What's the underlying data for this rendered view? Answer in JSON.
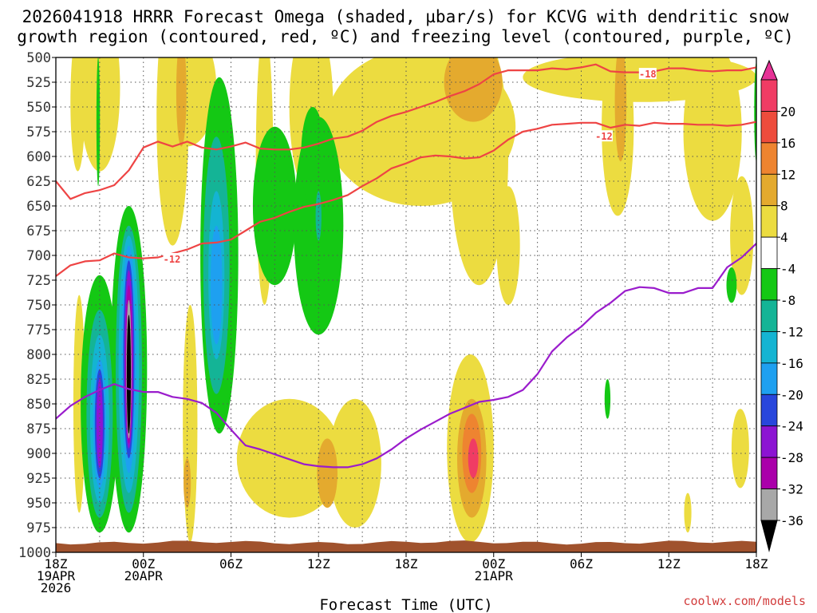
{
  "chart_data": {
    "type": "heatmap",
    "title_line1": "2026041918 HRRR Forecast Omega (shaded, µbar/s) for KCVG with dendritic snow",
    "title_line2": "growth region (contoured, red, ºC) and freezing level (contoured, purple, ºC)",
    "xlabel": "Forecast Time (UTC)",
    "ylabel": "",
    "xlim": [
      0,
      48
    ],
    "ylim": [
      1000,
      500
    ],
    "y_ticks": [
      "500",
      "525",
      "550",
      "575",
      "600",
      "625",
      "650",
      "675",
      "700",
      "725",
      "750",
      "775",
      "800",
      "825",
      "850",
      "875",
      "900",
      "925",
      "950",
      "975",
      "1000"
    ],
    "x_ticks": [
      {
        "hour": 0,
        "line1": "18Z",
        "line2": "19APR",
        "line3": "2026"
      },
      {
        "hour": 6,
        "line1": "00Z",
        "line2": "20APR",
        "line3": ""
      },
      {
        "hour": 12,
        "line1": "06Z",
        "line2": "",
        "line3": ""
      },
      {
        "hour": 18,
        "line1": "12Z",
        "line2": "",
        "line3": ""
      },
      {
        "hour": 24,
        "line1": "18Z",
        "line2": "",
        "line3": ""
      },
      {
        "hour": 30,
        "line1": "00Z",
        "line2": "21APR",
        "line3": ""
      },
      {
        "hour": 36,
        "line1": "06Z",
        "line2": "",
        "line3": ""
      },
      {
        "hour": 42,
        "line1": "12Z",
        "line2": "",
        "line3": ""
      },
      {
        "hour": 48,
        "line1": "18Z",
        "line2": "",
        "line3": ""
      }
    ],
    "colorbar": {
      "labels": [
        "20",
        "16",
        "12",
        "8",
        "4",
        "-4",
        "-8",
        "-12",
        "-16",
        "-20",
        "-24",
        "-28",
        "-32",
        "-36"
      ],
      "colors": [
        "#f03c64",
        "#ee4c3c",
        "#ee8430",
        "#e4aa2e",
        "#ecdc40",
        "#ffffff",
        "#14c814",
        "#14b496",
        "#14b4d2",
        "#1ea0f0",
        "#2846dc",
        "#8c14d2",
        "#aa00aa",
        "#a8a8a8"
      ],
      "top_arrow_color": "#e63296",
      "bottom_arrow_color": "#000000"
    },
    "shading": [
      {
        "level": "4 to 8",
        "color": "#ecdc40",
        "blobs": [
          {
            "h": 1.5,
            "p": 545,
            "rh": 0.5,
            "rp": 70
          },
          {
            "h": 1.6,
            "p": 850,
            "rh": 0.4,
            "rp": 110
          },
          {
            "h": 3.0,
            "p": 530,
            "rh": 1.4,
            "rp": 85
          },
          {
            "h": 8.0,
            "p": 560,
            "rh": 1.1,
            "rp": 130
          },
          {
            "h": 9.0,
            "p": 530,
            "rh": 2.0,
            "rp": 60
          },
          {
            "h": 9.2,
            "p": 870,
            "rh": 0.5,
            "rp": 120
          },
          {
            "h": 14.3,
            "p": 610,
            "rh": 0.6,
            "rp": 140
          },
          {
            "h": 16.0,
            "p": 905,
            "rh": 3.6,
            "rp": 60
          },
          {
            "h": 20.5,
            "p": 910,
            "rh": 1.8,
            "rp": 65
          },
          {
            "h": 17.5,
            "p": 550,
            "rh": 1.5,
            "rp": 90
          },
          {
            "h": 25.0,
            "p": 570,
            "rh": 6.5,
            "rp": 80
          },
          {
            "h": 29.0,
            "p": 600,
            "rh": 2.0,
            "rp": 130
          },
          {
            "h": 31.0,
            "p": 690,
            "rh": 0.8,
            "rp": 60
          },
          {
            "h": 28.4,
            "p": 895,
            "rh": 1.6,
            "rp": 95
          },
          {
            "h": 38.5,
            "p": 570,
            "rh": 1.1,
            "rp": 90
          },
          {
            "h": 40.0,
            "p": 520,
            "rh": 8.0,
            "rp": 25
          },
          {
            "h": 45.0,
            "p": 575,
            "rh": 2.0,
            "rp": 90
          },
          {
            "h": 47.0,
            "p": 680,
            "rh": 0.8,
            "rp": 60
          },
          {
            "h": 46.9,
            "p": 895,
            "rh": 0.6,
            "rp": 40
          },
          {
            "h": 43.3,
            "p": 960,
            "rh": 0.25,
            "rp": 20
          }
        ]
      },
      {
        "level": "8 to 12",
        "color": "#e4aa2e",
        "blobs": [
          {
            "h": 8.6,
            "p": 535,
            "rh": 0.35,
            "rp": 55
          },
          {
            "h": 28.6,
            "p": 525,
            "rh": 2.0,
            "rp": 40
          },
          {
            "h": 38.7,
            "p": 545,
            "rh": 0.4,
            "rp": 60
          },
          {
            "h": 18.6,
            "p": 920,
            "rh": 0.7,
            "rp": 35
          },
          {
            "h": 28.5,
            "p": 905,
            "rh": 1.0,
            "rp": 60
          },
          {
            "h": 9.0,
            "p": 930,
            "rh": 0.25,
            "rp": 25
          }
        ]
      },
      {
        "level": "12 to 16",
        "color": "#ee8430",
        "blobs": [
          {
            "h": 28.5,
            "p": 900,
            "rh": 0.65,
            "rp": 40
          }
        ]
      },
      {
        "level": "16 to 20",
        "color": "#f03c64",
        "blobs": [
          {
            "h": 28.6,
            "p": 905,
            "rh": 0.35,
            "rp": 20
          },
          {
            "h": 4.1,
            "p": 830,
            "rh": 0.15,
            "rp": 40
          }
        ]
      },
      {
        "level": "-4 to -8",
        "color": "#14c814",
        "blobs": [
          {
            "h": 3.0,
            "p": 850,
            "rh": 1.3,
            "rp": 130
          },
          {
            "h": 5.0,
            "p": 815,
            "rh": 1.25,
            "rp": 165
          },
          {
            "h": 2.9,
            "p": 565,
            "rh": 0.12,
            "rp": 65
          },
          {
            "h": 11.2,
            "p": 700,
            "rh": 1.3,
            "rp": 180
          },
          {
            "h": 15.0,
            "p": 650,
            "rh": 1.5,
            "rp": 80
          },
          {
            "h": 18.0,
            "p": 670,
            "rh": 1.7,
            "rp": 110
          },
          {
            "h": 17.6,
            "p": 600,
            "rh": 0.8,
            "rp": 50
          },
          {
            "h": 46.3,
            "p": 730,
            "rh": 0.35,
            "rp": 18
          },
          {
            "h": 37.8,
            "p": 845,
            "rh": 0.2,
            "rp": 20
          },
          {
            "h": 48.0,
            "p": 555,
            "rh": 0.15,
            "rp": 50
          }
        ]
      },
      {
        "level": "-8 to -12",
        "color": "#14b496",
        "blobs": [
          {
            "h": 3.0,
            "p": 860,
            "rh": 0.9,
            "rp": 105
          },
          {
            "h": 5.0,
            "p": 815,
            "rh": 0.9,
            "rp": 145
          },
          {
            "h": 11.0,
            "p": 710,
            "rh": 0.9,
            "rp": 130
          },
          {
            "h": 18.0,
            "p": 660,
            "rh": 0.2,
            "rp": 25
          }
        ]
      },
      {
        "level": "-12 to -16",
        "color": "#14b4d2",
        "blobs": [
          {
            "h": 3.0,
            "p": 865,
            "rh": 0.65,
            "rp": 85
          },
          {
            "h": 5.0,
            "p": 810,
            "rh": 0.7,
            "rp": 130
          },
          {
            "h": 11.0,
            "p": 720,
            "rh": 0.55,
            "rp": 85
          }
        ]
      },
      {
        "level": "-16 to -20",
        "color": "#1ea0f0",
        "blobs": [
          {
            "h": 3.0,
            "p": 870,
            "rh": 0.45,
            "rp": 65
          },
          {
            "h": 5.0,
            "p": 805,
            "rh": 0.5,
            "rp": 115
          },
          {
            "h": 11.0,
            "p": 730,
            "rh": 0.4,
            "rp": 60
          }
        ]
      },
      {
        "level": "-20 to -24",
        "color": "#2846dc",
        "blobs": [
          {
            "h": 3.0,
            "p": 870,
            "rh": 0.33,
            "rp": 55
          },
          {
            "h": 5.0,
            "p": 805,
            "rh": 0.38,
            "rp": 100
          }
        ]
      },
      {
        "level": "-24 to -28",
        "color": "#8c14d2",
        "blobs": [
          {
            "h": 3.0,
            "p": 870,
            "rh": 0.22,
            "rp": 45
          },
          {
            "h": 5.0,
            "p": 805,
            "rh": 0.3,
            "rp": 90
          }
        ]
      },
      {
        "level": "-28 to -32",
        "color": "#aa00aa",
        "blobs": [
          {
            "h": 5.0,
            "p": 810,
            "rh": 0.24,
            "rp": 80
          }
        ]
      },
      {
        "level": "-32 to -36",
        "color": "#a8a8a8",
        "blobs": [
          {
            "h": 5.0,
            "p": 815,
            "rh": 0.18,
            "rp": 70
          }
        ]
      },
      {
        "level": "< -36",
        "color": "#000000",
        "blobs": [
          {
            "h": 5.0,
            "p": 820,
            "rh": 0.14,
            "rp": 60
          }
        ]
      }
    ],
    "contours": [
      {
        "name": "minus18",
        "label": "-18",
        "label_hour": 40.5,
        "label_p": 517,
        "color": "#ee4444",
        "points": [
          [
            0,
            625
          ],
          [
            1,
            643
          ],
          [
            2,
            637
          ],
          [
            3,
            634
          ],
          [
            4,
            629
          ],
          [
            5,
            614
          ],
          [
            6,
            591
          ],
          [
            7,
            585
          ],
          [
            8,
            590
          ],
          [
            9,
            585
          ],
          [
            10,
            591
          ],
          [
            11,
            593
          ],
          [
            12,
            590
          ],
          [
            13,
            586
          ],
          [
            14,
            592
          ],
          [
            15,
            593
          ],
          [
            16,
            593
          ],
          [
            17,
            591
          ],
          [
            18,
            587
          ],
          [
            19,
            582
          ],
          [
            20,
            580
          ],
          [
            21,
            574
          ],
          [
            22,
            565
          ],
          [
            23,
            559
          ],
          [
            24,
            555
          ],
          [
            25,
            550
          ],
          [
            26,
            545
          ],
          [
            27,
            539
          ],
          [
            28,
            534
          ],
          [
            29,
            527
          ],
          [
            30,
            517
          ],
          [
            31,
            513
          ],
          [
            32,
            513
          ],
          [
            33,
            513
          ],
          [
            34,
            511
          ],
          [
            35,
            512
          ],
          [
            36,
            510
          ],
          [
            37,
            507
          ],
          [
            38,
            514
          ],
          [
            39,
            515
          ],
          [
            40,
            515
          ],
          [
            41,
            514
          ],
          [
            42,
            511
          ],
          [
            43,
            511
          ],
          [
            44,
            513
          ],
          [
            45,
            514
          ],
          [
            46,
            513
          ],
          [
            47,
            513
          ],
          [
            48,
            510
          ]
        ]
      },
      {
        "name": "minus12",
        "label": "-12",
        "label_hour": 37.5,
        "label_p": 580,
        "color": "#ee4444",
        "points": [
          [
            0,
            721
          ],
          [
            1,
            710
          ],
          [
            2,
            706
          ],
          [
            3,
            705
          ],
          [
            4,
            698
          ],
          [
            5,
            702
          ],
          [
            6,
            703
          ],
          [
            7,
            702
          ],
          [
            8,
            698
          ],
          [
            9,
            694
          ],
          [
            10,
            688
          ],
          [
            11,
            687
          ],
          [
            12,
            684
          ],
          [
            13,
            675
          ],
          [
            14,
            666
          ],
          [
            15,
            662
          ],
          [
            16,
            656
          ],
          [
            17,
            651
          ],
          [
            18,
            648
          ],
          [
            19,
            644
          ],
          [
            20,
            639
          ],
          [
            21,
            630
          ],
          [
            22,
            622
          ],
          [
            23,
            612
          ],
          [
            24,
            607
          ],
          [
            25,
            601
          ],
          [
            26,
            599
          ],
          [
            27,
            600
          ],
          [
            28,
            602
          ],
          [
            29,
            601
          ],
          [
            30,
            594
          ],
          [
            31,
            583
          ],
          [
            32,
            575
          ],
          [
            33,
            572
          ],
          [
            34,
            568
          ],
          [
            35,
            567
          ],
          [
            36,
            566
          ],
          [
            37,
            566
          ],
          [
            38,
            571
          ],
          [
            39,
            568
          ],
          [
            40,
            569
          ],
          [
            41,
            566
          ],
          [
            42,
            567
          ],
          [
            43,
            567
          ],
          [
            44,
            568
          ],
          [
            45,
            568
          ],
          [
            46,
            569
          ],
          [
            47,
            568
          ],
          [
            48,
            565
          ]
        ]
      },
      {
        "name": "freezing",
        "label": "",
        "label_hour": 0,
        "label_p": 0,
        "color": "#9a1ccc",
        "points": [
          [
            0,
            865
          ],
          [
            1,
            852
          ],
          [
            2,
            843
          ],
          [
            3,
            836
          ],
          [
            4,
            830
          ],
          [
            5,
            835
          ],
          [
            6,
            838
          ],
          [
            7,
            838
          ],
          [
            8,
            843
          ],
          [
            9,
            845
          ],
          [
            10,
            849
          ],
          [
            11,
            859
          ],
          [
            12,
            876
          ],
          [
            13,
            892
          ],
          [
            14,
            896
          ],
          [
            15,
            901
          ],
          [
            16,
            906
          ],
          [
            17,
            911
          ],
          [
            18,
            913
          ],
          [
            19,
            914
          ],
          [
            20,
            914
          ],
          [
            21,
            911
          ],
          [
            22,
            905
          ],
          [
            23,
            896
          ],
          [
            24,
            885
          ],
          [
            25,
            876
          ],
          [
            26,
            868
          ],
          [
            27,
            860
          ],
          [
            28,
            854
          ],
          [
            29,
            848
          ],
          [
            30,
            846
          ],
          [
            31,
            843
          ],
          [
            32,
            836
          ],
          [
            33,
            820
          ],
          [
            34,
            797
          ],
          [
            35,
            783
          ],
          [
            36,
            772
          ],
          [
            37,
            758
          ],
          [
            38,
            748
          ],
          [
            39,
            736
          ],
          [
            40,
            732
          ],
          [
            41,
            733
          ],
          [
            42,
            738
          ],
          [
            43,
            738
          ],
          [
            44,
            733
          ],
          [
            45,
            733
          ],
          [
            46,
            712
          ],
          [
            47,
            702
          ],
          [
            48,
            688
          ]
        ]
      }
    ],
    "inline_labels": {
      "m12_left": "-12",
      "m18_right": "-18",
      "m12_right": "-12"
    },
    "terrain_color": "#a0522d"
  },
  "credit": "coolwx.com/models"
}
